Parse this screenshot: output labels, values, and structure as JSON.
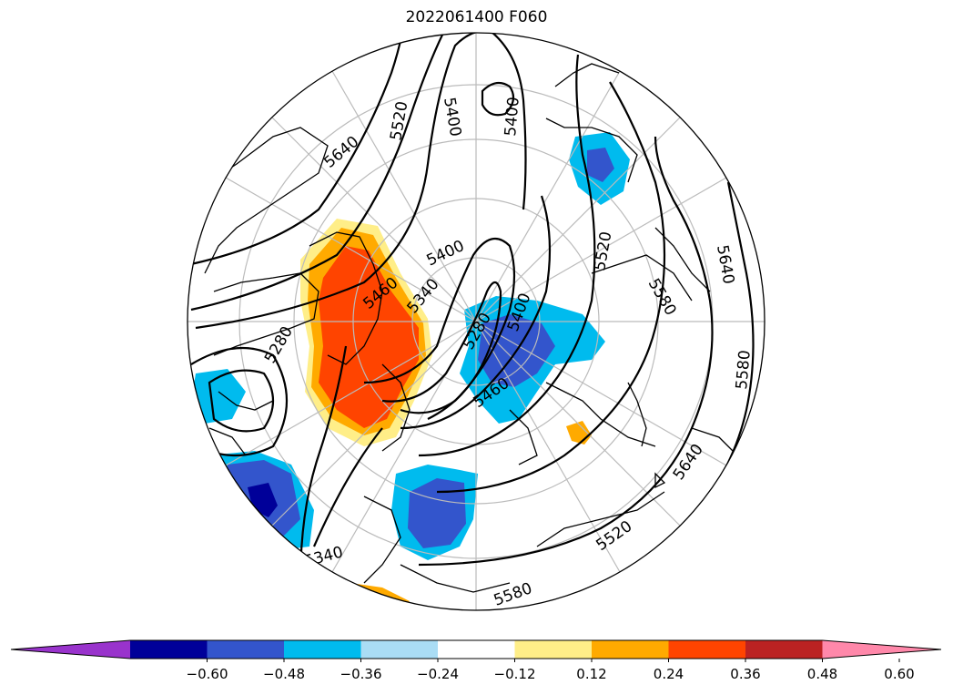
{
  "title": "2022061400 F060",
  "colorbar": {
    "tick_labels": [
      "−0.60",
      "−0.48",
      "−0.36",
      "−0.24",
      "−0.12",
      "0.12",
      "0.24",
      "0.36",
      "0.48",
      "0.60"
    ],
    "colors": [
      "#9933cc",
      "#000099",
      "#3355cc",
      "#00bbee",
      "#aaddf5",
      "#ffffff",
      "#ffee88",
      "#ffaa00",
      "#ff4400",
      "#bb2222",
      "#ff88aa"
    ]
  },
  "contour_labels": [
    "5640",
    "5520",
    "5400",
    "5400",
    "5400",
    "5340",
    "5460",
    "5280",
    "5400",
    "5460",
    "5520",
    "5580",
    "5640",
    "5580",
    "5640",
    "5520",
    "5580",
    "5340",
    "5280"
  ],
  "colors": {
    "land_outline": "#000000",
    "grid": "#bbbbbb",
    "contour": "#000000"
  }
}
